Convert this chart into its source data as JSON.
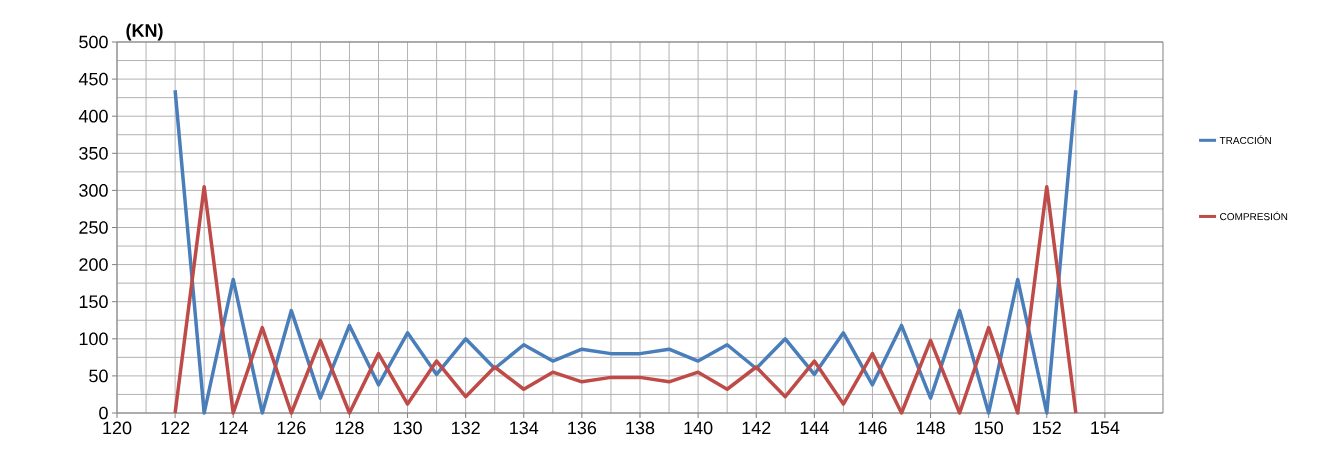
{
  "chart_data": {
    "type": "line",
    "ylabel": "(KN)",
    "x": [
      122,
      123,
      124,
      125,
      126,
      127,
      128,
      129,
      130,
      131,
      132,
      133,
      134,
      135,
      136,
      137,
      138,
      139,
      140,
      141,
      142,
      143,
      144,
      145,
      146,
      147,
      148,
      149,
      150,
      151,
      152,
      153
    ],
    "series": [
      {
        "name": "TRACCIÓN",
        "color": "#4a7ebb",
        "values": [
          435,
          0,
          180,
          0,
          138,
          20,
          118,
          38,
          108,
          52,
          100,
          60,
          92,
          70,
          86,
          80,
          80,
          86,
          70,
          92,
          60,
          100,
          52,
          108,
          38,
          118,
          20,
          138,
          0,
          180,
          0,
          435
        ]
      },
      {
        "name": "COMPRESIÓN",
        "color": "#be4b48",
        "values": [
          0,
          305,
          0,
          115,
          0,
          98,
          0,
          80,
          12,
          70,
          22,
          62,
          32,
          55,
          42,
          48,
          48,
          42,
          55,
          32,
          62,
          22,
          70,
          12,
          80,
          0,
          98,
          0,
          115,
          0,
          305,
          0
        ]
      }
    ],
    "xlim": [
      120,
      156
    ],
    "xticks": [
      120,
      122,
      124,
      126,
      128,
      130,
      132,
      134,
      136,
      138,
      140,
      142,
      144,
      146,
      148,
      150,
      152,
      154
    ],
    "ylim": [
      0,
      500
    ],
    "yticks": [
      0,
      50,
      100,
      150,
      200,
      250,
      300,
      350,
      400,
      450,
      500
    ],
    "grid": true,
    "legend": "right",
    "marker": "none",
    "line_style": "solid"
  }
}
